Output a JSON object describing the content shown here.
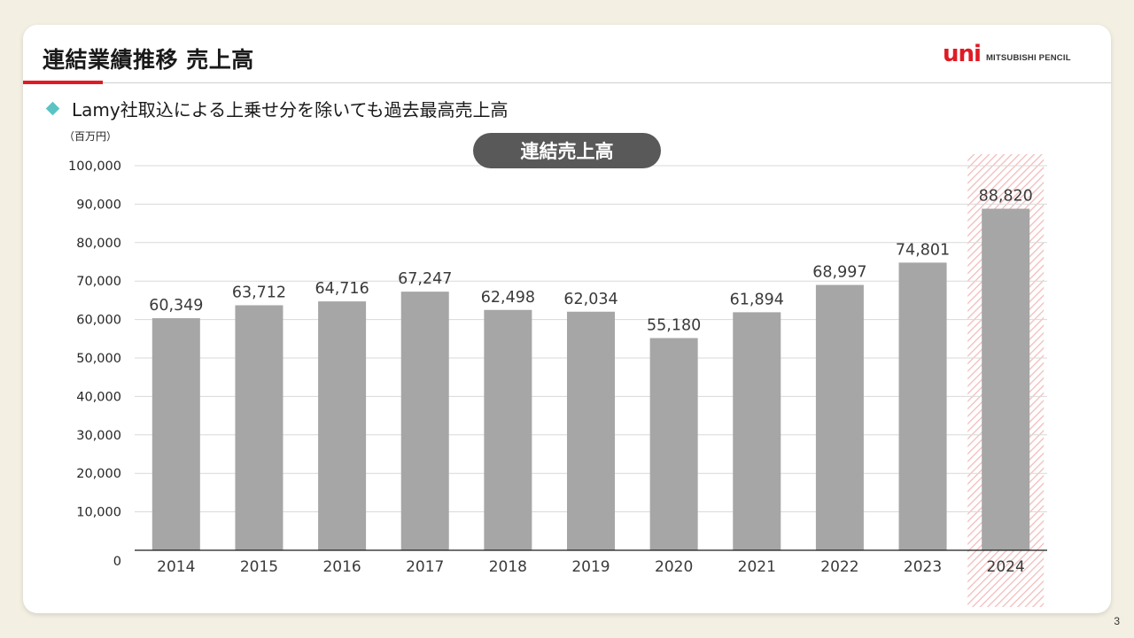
{
  "header": {
    "title": "連結業績推移 売上高",
    "subtitle": "Lamy社取込による上乗せ分を除いても過去最高売上高",
    "logo_mark": "uni",
    "logo_text": "MITSUBISHI PENCIL"
  },
  "page_number": "3",
  "colors": {
    "bar": "#a6a6a6",
    "accent": "#e01b24",
    "bullet": "#5bc3c3",
    "highlight_stripe": "#f2b8b8",
    "chart_title_bg": "#595959"
  },
  "chart_data": {
    "type": "bar",
    "title": "連結売上高",
    "unit_label": "（百万円）",
    "categories": [
      "2014",
      "2015",
      "2016",
      "2017",
      "2018",
      "2019",
      "2020",
      "2021",
      "2022",
      "2023",
      "2024"
    ],
    "values": [
      60349,
      63712,
      64716,
      67247,
      62498,
      62034,
      55180,
      61894,
      68997,
      74801,
      88820
    ],
    "value_labels": [
      "60,349",
      "63,712",
      "64,716",
      "67,247",
      "62,498",
      "62,034",
      "55,180",
      "61,894",
      "68,997",
      "74,801",
      "88,820"
    ],
    "ylim": [
      0,
      100000
    ],
    "yticks": [
      0,
      10000,
      20000,
      30000,
      40000,
      50000,
      60000,
      70000,
      80000,
      90000,
      100000
    ],
    "ytick_labels": [
      "0",
      "10,000",
      "20,000",
      "30,000",
      "40,000",
      "50,000",
      "60,000",
      "70,000",
      "80,000",
      "90,000",
      "100,000"
    ],
    "highlight_category": "2024",
    "grid": true,
    "legend": "none"
  }
}
